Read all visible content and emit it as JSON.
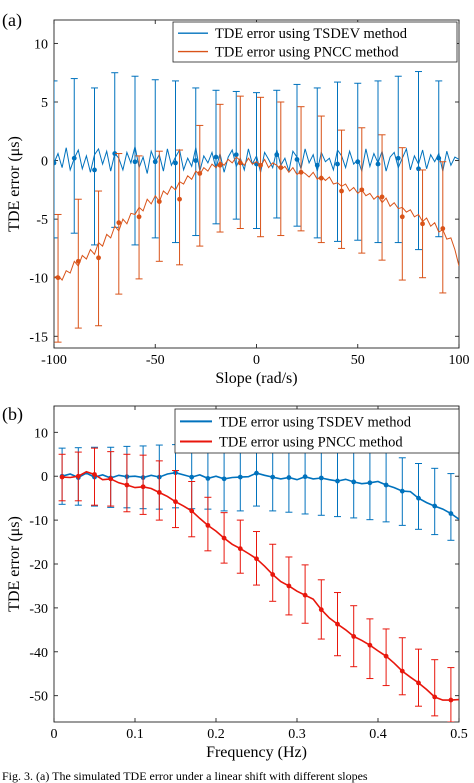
{
  "figure": {
    "caption": "Fig. 3. (a) The simulated TDE error under a linear shift with different slopes"
  },
  "chart_data": [
    {
      "type": "line",
      "panel_label": "(a)",
      "xlabel": "Slope (rad/s)",
      "ylabel": "TDE error (μs)",
      "xlim": [
        -100,
        100
      ],
      "ylim": [
        -16,
        12
      ],
      "xticks": [
        -100,
        -50,
        0,
        50,
        100
      ],
      "yticks": [
        -15,
        -10,
        -5,
        0,
        5,
        10
      ],
      "grid": false,
      "legend": "top-right",
      "series": [
        {
          "name": "TDE error using TSDEV method",
          "color": "#0072BD",
          "line_x": [
            -100,
            -98,
            -96,
            -94,
            -92,
            -90,
            -88,
            -86,
            -84,
            -82,
            -80,
            -78,
            -76,
            -74,
            -72,
            -70,
            -68,
            -66,
            -64,
            -62,
            -60,
            -58,
            -56,
            -54,
            -52,
            -50,
            -48,
            -46,
            -44,
            -42,
            -40,
            -38,
            -36,
            -34,
            -32,
            -30,
            -28,
            -26,
            -24,
            -22,
            -20,
            -18,
            -16,
            -14,
            -12,
            -10,
            -8,
            -6,
            -4,
            -2,
            0,
            2,
            4,
            6,
            8,
            10,
            12,
            14,
            16,
            18,
            20,
            22,
            24,
            26,
            28,
            30,
            32,
            34,
            36,
            38,
            40,
            42,
            44,
            46,
            48,
            50,
            52,
            54,
            56,
            58,
            60,
            62,
            64,
            66,
            68,
            70,
            72,
            74,
            76,
            78,
            80,
            82,
            84,
            86,
            88,
            90,
            92,
            94,
            96,
            98,
            100
          ],
          "line_y": [
            -0.2,
            0.6,
            -0.6,
            1.1,
            -0.8,
            0.2,
            0.9,
            -0.7,
            0.4,
            -1.0,
            0.5,
            1.0,
            -0.3,
            0.8,
            -0.9,
            0.6,
            0.2,
            -0.8,
            0.7,
            -0.2,
            1.2,
            -0.6,
            0.3,
            -1.1,
            0.8,
            -0.1,
            0.5,
            -0.9,
            1.0,
            -0.4,
            0.3,
            0.9,
            -0.8,
            0.2,
            -0.5,
            1.1,
            -0.9,
            0.4,
            -0.2,
            0.7,
            -0.7,
            0.6,
            -1.0,
            0.3,
            0.9,
            -0.5,
            0.2,
            -0.8,
            1.0,
            -0.3,
            0.4,
            -1.0,
            0.7,
            0.1,
            -0.6,
            0.9,
            -0.4,
            0.2,
            -0.9,
            0.8,
            0.3,
            -0.7,
            1.0,
            -0.2,
            0.5,
            -0.9,
            0.7,
            -0.1,
            0.2,
            -0.8,
            0.9,
            0.4,
            -0.6,
            0.8,
            -0.3,
            0.1,
            -0.9,
            1.0,
            -0.5,
            0.6,
            -0.2,
            0.8,
            -0.9,
            0.3,
            0.7,
            -0.6,
            0.2,
            1.0,
            -0.8,
            0.4,
            -0.3,
            0.9,
            -0.7,
            0.5,
            -0.1,
            0.6,
            -0.9,
            0.8,
            -0.4,
            0.3,
            0.1
          ],
          "err_x": [
            -100,
            -90,
            -80,
            -70,
            -60,
            -50,
            -40,
            -30,
            -20,
            -10,
            0,
            10,
            20,
            30,
            40,
            50,
            60,
            70,
            80,
            90
          ],
          "err_y": [
            -0.2,
            0.2,
            -0.8,
            0.6,
            -0.1,
            -0.1,
            -0.2,
            0.0,
            0.3,
            0.5,
            -0.3,
            0.5,
            0.1,
            -0.4,
            -0.3,
            -0.1,
            -0.3,
            0.2,
            -0.7,
            0.2
          ],
          "err_hi": [
            6.8,
            7.0,
            6.2,
            7.5,
            7.2,
            6.9,
            6.8,
            6.2,
            6.0,
            5.9,
            5.8,
            6.0,
            6.5,
            6.2,
            6.7,
            6.6,
            6.8,
            7.2,
            7.6,
            6.8
          ],
          "err_lo": [
            -6.6,
            -6.2,
            -7.2,
            -5.7,
            -7.2,
            -6.6,
            -7.0,
            -6.4,
            -5.4,
            -5.0,
            -5.8,
            -4.9,
            -5.6,
            -6.6,
            -6.9,
            -6.8,
            -7.0,
            -7.0,
            -7.6,
            -6.5
          ]
        },
        {
          "name": "TDE error using PNCC method",
          "color": "#D95319",
          "line_x": [
            -100,
            -98,
            -96,
            -94,
            -92,
            -90,
            -88,
            -86,
            -84,
            -82,
            -80,
            -78,
            -76,
            -74,
            -72,
            -70,
            -68,
            -66,
            -64,
            -62,
            -60,
            -58,
            -56,
            -54,
            -52,
            -50,
            -48,
            -46,
            -44,
            -42,
            -40,
            -38,
            -36,
            -34,
            -32,
            -30,
            -28,
            -26,
            -24,
            -22,
            -20,
            -18,
            -16,
            -14,
            -12,
            -10,
            -8,
            -6,
            -4,
            -2,
            0,
            2,
            4,
            6,
            8,
            10,
            12,
            14,
            16,
            18,
            20,
            22,
            24,
            26,
            28,
            30,
            32,
            34,
            36,
            38,
            40,
            42,
            44,
            46,
            48,
            50,
            52,
            54,
            56,
            58,
            60,
            62,
            64,
            66,
            68,
            70,
            72,
            74,
            76,
            78,
            80,
            82,
            84,
            86,
            88,
            90,
            92,
            94,
            96,
            98,
            100
          ],
          "line_y": [
            -10.0,
            -9.8,
            -10.2,
            -9.4,
            -9.6,
            -8.6,
            -9.0,
            -8.1,
            -8.4,
            -7.6,
            -8.0,
            -7.0,
            -7.3,
            -6.3,
            -6.6,
            -5.6,
            -6.0,
            -5.0,
            -5.4,
            -4.5,
            -4.6,
            -4.0,
            -4.3,
            -3.3,
            -3.7,
            -3.0,
            -3.5,
            -2.6,
            -2.9,
            -2.2,
            -2.5,
            -1.8,
            -2.0,
            -1.3,
            -1.6,
            -0.9,
            -1.2,
            -0.6,
            -0.9,
            -0.3,
            -0.6,
            -0.1,
            -0.4,
            0.1,
            -0.2,
            0.3,
            0.0,
            -0.4,
            0.2,
            -0.3,
            -0.1,
            -0.5,
            0.1,
            -0.6,
            -0.2,
            -0.4,
            -0.8,
            -0.5,
            -1.0,
            -0.6,
            -1.2,
            -0.9,
            -1.1,
            -1.4,
            -1.0,
            -1.6,
            -1.3,
            -1.7,
            -1.4,
            -2.0,
            -1.9,
            -2.2,
            -2.0,
            -2.6,
            -2.3,
            -2.8,
            -2.5,
            -3.0,
            -2.8,
            -3.3,
            -3.0,
            -3.6,
            -3.2,
            -3.9,
            -3.6,
            -4.1,
            -4.0,
            -4.4,
            -4.2,
            -4.8,
            -4.6,
            -5.2,
            -4.9,
            -5.6,
            -5.3,
            -6.1,
            -5.9,
            -6.7,
            -6.6,
            -7.6,
            -9.0
          ],
          "err_x": [
            -98,
            -88,
            -78,
            -68,
            -58,
            -48,
            -38,
            -28,
            -18,
            -8,
            2,
            12,
            22,
            32,
            42,
            52,
            62,
            72,
            82,
            92
          ],
          "err_y": [
            -10.0,
            -8.6,
            -8.3,
            -5.3,
            -4.8,
            -3.5,
            -3.3,
            -1.1,
            -0.4,
            -0.2,
            -0.4,
            -0.6,
            -1.0,
            -1.5,
            -2.6,
            -2.5,
            -3.1,
            -4.8,
            -5.4,
            -5.8
          ],
          "err_hi": [
            -4.6,
            -3.3,
            -2.6,
            0.6,
            0.4,
            0.8,
            0.9,
            3.0,
            4.8,
            5.5,
            5.4,
            5.0,
            4.6,
            3.8,
            2.6,
            2.8,
            2.2,
            1.1,
            -0.8,
            -0.1
          ],
          "err_lo": [
            -15.5,
            -14.3,
            -14.1,
            -11.4,
            -10.1,
            -8.6,
            -8.9,
            -7.3,
            -6.1,
            -5.8,
            -6.5,
            -6.4,
            -6.0,
            -7.0,
            -7.5,
            -7.9,
            -8.5,
            -10.2,
            -10.0,
            -11.3
          ]
        }
      ]
    },
    {
      "type": "line",
      "panel_label": "(b)",
      "xlabel": "Frequency (Hz)",
      "ylabel": "TDE error (μs)",
      "xlim": [
        0,
        0.5
      ],
      "ylim": [
        -56,
        16
      ],
      "xticks": [
        0,
        0.1,
        0.2,
        0.3,
        0.4,
        0.5
      ],
      "xticklabels": [
        "0",
        "0.1",
        "0.2",
        "0.3",
        "0.4",
        "0.5"
      ],
      "yticks": [
        -50,
        -40,
        -30,
        -20,
        -10,
        0,
        10
      ],
      "grid": false,
      "legend": "top-right",
      "series": [
        {
          "name": "TDE error using TSDEV method",
          "color": "#0072BD",
          "x": [
            0.01,
            0.02,
            0.03,
            0.04,
            0.05,
            0.06,
            0.07,
            0.08,
            0.09,
            0.1,
            0.11,
            0.12,
            0.13,
            0.14,
            0.15,
            0.16,
            0.17,
            0.18,
            0.19,
            0.2,
            0.21,
            0.22,
            0.23,
            0.24,
            0.25,
            0.26,
            0.27,
            0.28,
            0.29,
            0.3,
            0.31,
            0.32,
            0.33,
            0.34,
            0.35,
            0.36,
            0.37,
            0.38,
            0.39,
            0.4,
            0.41,
            0.42,
            0.43,
            0.44,
            0.45,
            0.46,
            0.47,
            0.48,
            0.49,
            0.5
          ],
          "y": [
            0.0,
            0.5,
            -0.3,
            0.7,
            -0.2,
            0.3,
            -0.4,
            0.2,
            -0.1,
            0.0,
            -0.3,
            0.2,
            -0.2,
            0.5,
            0.8,
            0.3,
            -0.2,
            0.3,
            -0.5,
            0.0,
            -0.6,
            -0.3,
            -0.2,
            -0.1,
            0.7,
            0.2,
            -0.2,
            -0.6,
            -0.3,
            -0.8,
            -0.1,
            -0.6,
            -0.4,
            -0.8,
            -1.1,
            -0.7,
            -1.3,
            -1.7,
            -1.5,
            -1.2,
            -2.0,
            -2.6,
            -3.4,
            -3.5,
            -5.0,
            -6.0,
            -6.8,
            -7.5,
            -8.5,
            -9.8
          ],
          "err_x": [
            0.01,
            0.03,
            0.05,
            0.07,
            0.09,
            0.11,
            0.13,
            0.15,
            0.17,
            0.19,
            0.21,
            0.23,
            0.25,
            0.27,
            0.29,
            0.31,
            0.33,
            0.35,
            0.37,
            0.39,
            0.41,
            0.43,
            0.45,
            0.47,
            0.49
          ],
          "err_hi": [
            6.4,
            6.5,
            6.6,
            6.6,
            6.8,
            6.9,
            7.1,
            7.2,
            7.3,
            7.4,
            7.5,
            7.6,
            7.7,
            7.8,
            7.8,
            7.9,
            7.6,
            7.3,
            6.9,
            6.3,
            5.4,
            4.2,
            2.9,
            1.8,
            0.6
          ],
          "err_lo": [
            -6.4,
            -6.6,
            -6.8,
            -7.1,
            -7.2,
            -7.4,
            -7.5,
            -7.2,
            -7.4,
            -7.5,
            -7.9,
            -7.9,
            -6.8,
            -7.9,
            -8.2,
            -8.6,
            -8.9,
            -9.2,
            -9.5,
            -9.9,
            -10.4,
            -11.2,
            -12.1,
            -13.3,
            -14.6
          ]
        },
        {
          "name": "TDE error using PNCC method",
          "color": "#E8160C",
          "x": [
            0.01,
            0.02,
            0.03,
            0.04,
            0.05,
            0.06,
            0.07,
            0.08,
            0.09,
            0.1,
            0.11,
            0.12,
            0.13,
            0.14,
            0.15,
            0.16,
            0.17,
            0.18,
            0.19,
            0.2,
            0.21,
            0.22,
            0.23,
            0.24,
            0.25,
            0.26,
            0.27,
            0.28,
            0.29,
            0.3,
            0.31,
            0.32,
            0.33,
            0.34,
            0.35,
            0.36,
            0.37,
            0.38,
            0.39,
            0.4,
            0.41,
            0.42,
            0.43,
            0.44,
            0.45,
            0.46,
            0.47,
            0.48,
            0.49,
            0.5
          ],
          "y": [
            -0.2,
            -0.3,
            0.0,
            1.0,
            0.4,
            -0.8,
            -0.6,
            -1.5,
            -2.0,
            -2.6,
            -2.4,
            -2.8,
            -3.7,
            -4.6,
            -5.8,
            -6.8,
            -7.9,
            -9.6,
            -11.2,
            -12.5,
            -14.1,
            -15.5,
            -16.5,
            -17.6,
            -18.8,
            -20.5,
            -22.4,
            -24.0,
            -25.0,
            -26.2,
            -27.1,
            -28.0,
            -30.4,
            -32.3,
            -33.7,
            -35.0,
            -36.5,
            -37.4,
            -38.5,
            -39.8,
            -41.0,
            -42.6,
            -44.4,
            -45.8,
            -47.1,
            -48.6,
            -50.3,
            -51.0,
            -51.0,
            -50.9
          ],
          "err_x": [
            0.01,
            0.03,
            0.05,
            0.07,
            0.09,
            0.11,
            0.13,
            0.15,
            0.17,
            0.19,
            0.21,
            0.23,
            0.25,
            0.27,
            0.29,
            0.31,
            0.33,
            0.35,
            0.37,
            0.39,
            0.41,
            0.43,
            0.45,
            0.47,
            0.49
          ],
          "err_hi": [
            5.0,
            5.5,
            6.4,
            5.6,
            5.0,
            4.8,
            3.5,
            1.3,
            -1.2,
            -4.8,
            -8.3,
            -10.0,
            -12.6,
            -15.5,
            -18.4,
            -20.2,
            -23.6,
            -26.5,
            -29.5,
            -32.5,
            -34.8,
            -36.8,
            -39.4,
            -41.8,
            -43.6
          ],
          "err_lo": [
            -5.6,
            -5.6,
            -6.6,
            -6.8,
            -8.1,
            -8.7,
            -10.0,
            -11.7,
            -13.8,
            -17.0,
            -19.8,
            -22.1,
            -24.8,
            -28.5,
            -31.6,
            -33.5,
            -37.1,
            -40.9,
            -43.4,
            -46.1,
            -47.7,
            -49.8,
            -52.4,
            -54.6,
            -56.0
          ]
        }
      ]
    }
  ]
}
